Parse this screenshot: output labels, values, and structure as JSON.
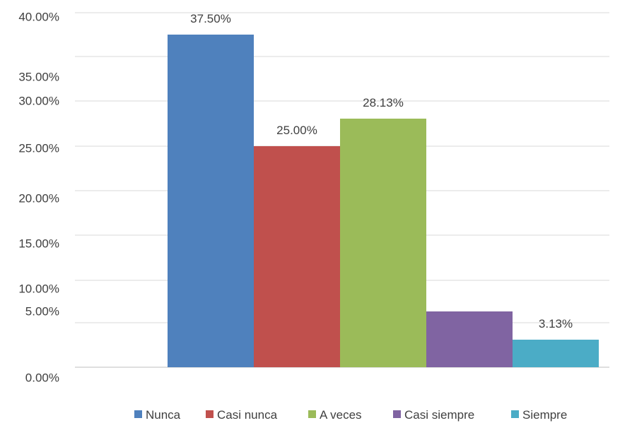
{
  "chart_data": {
    "type": "bar",
    "title": "",
    "xlabel": "",
    "ylabel": "",
    "categories": [
      "Nunca",
      "Casi nunca",
      "A veces",
      "Casi siempre",
      "Siempre"
    ],
    "values": [
      37.5,
      25.0,
      28.13,
      6.25,
      3.13
    ],
    "data_labels": [
      "37.50%",
      "25.00%",
      "28.13%",
      "",
      "3.13%"
    ],
    "colors": [
      "#4f81bd",
      "#c0504d",
      "#9bbb59",
      "#8064a2",
      "#4bacc6"
    ],
    "ylim": [
      0,
      40
    ],
    "y_ticks": [
      {
        "label": "40.00%"
      },
      {
        "label": "35.00%"
      },
      {
        "label": "30.00%"
      },
      {
        "label": "25.00%"
      },
      {
        "label": "20.00%"
      },
      {
        "label": "15.00%"
      },
      {
        "label": "10.00%"
      },
      {
        "label": "5.00%"
      },
      {
        "label": "0.00%"
      }
    ],
    "grid": true,
    "legend": {
      "position": "bottom",
      "entries": [
        "Nunca",
        "Casi nunca",
        "A veces",
        "Casi siempre",
        "Siempre"
      ]
    }
  }
}
